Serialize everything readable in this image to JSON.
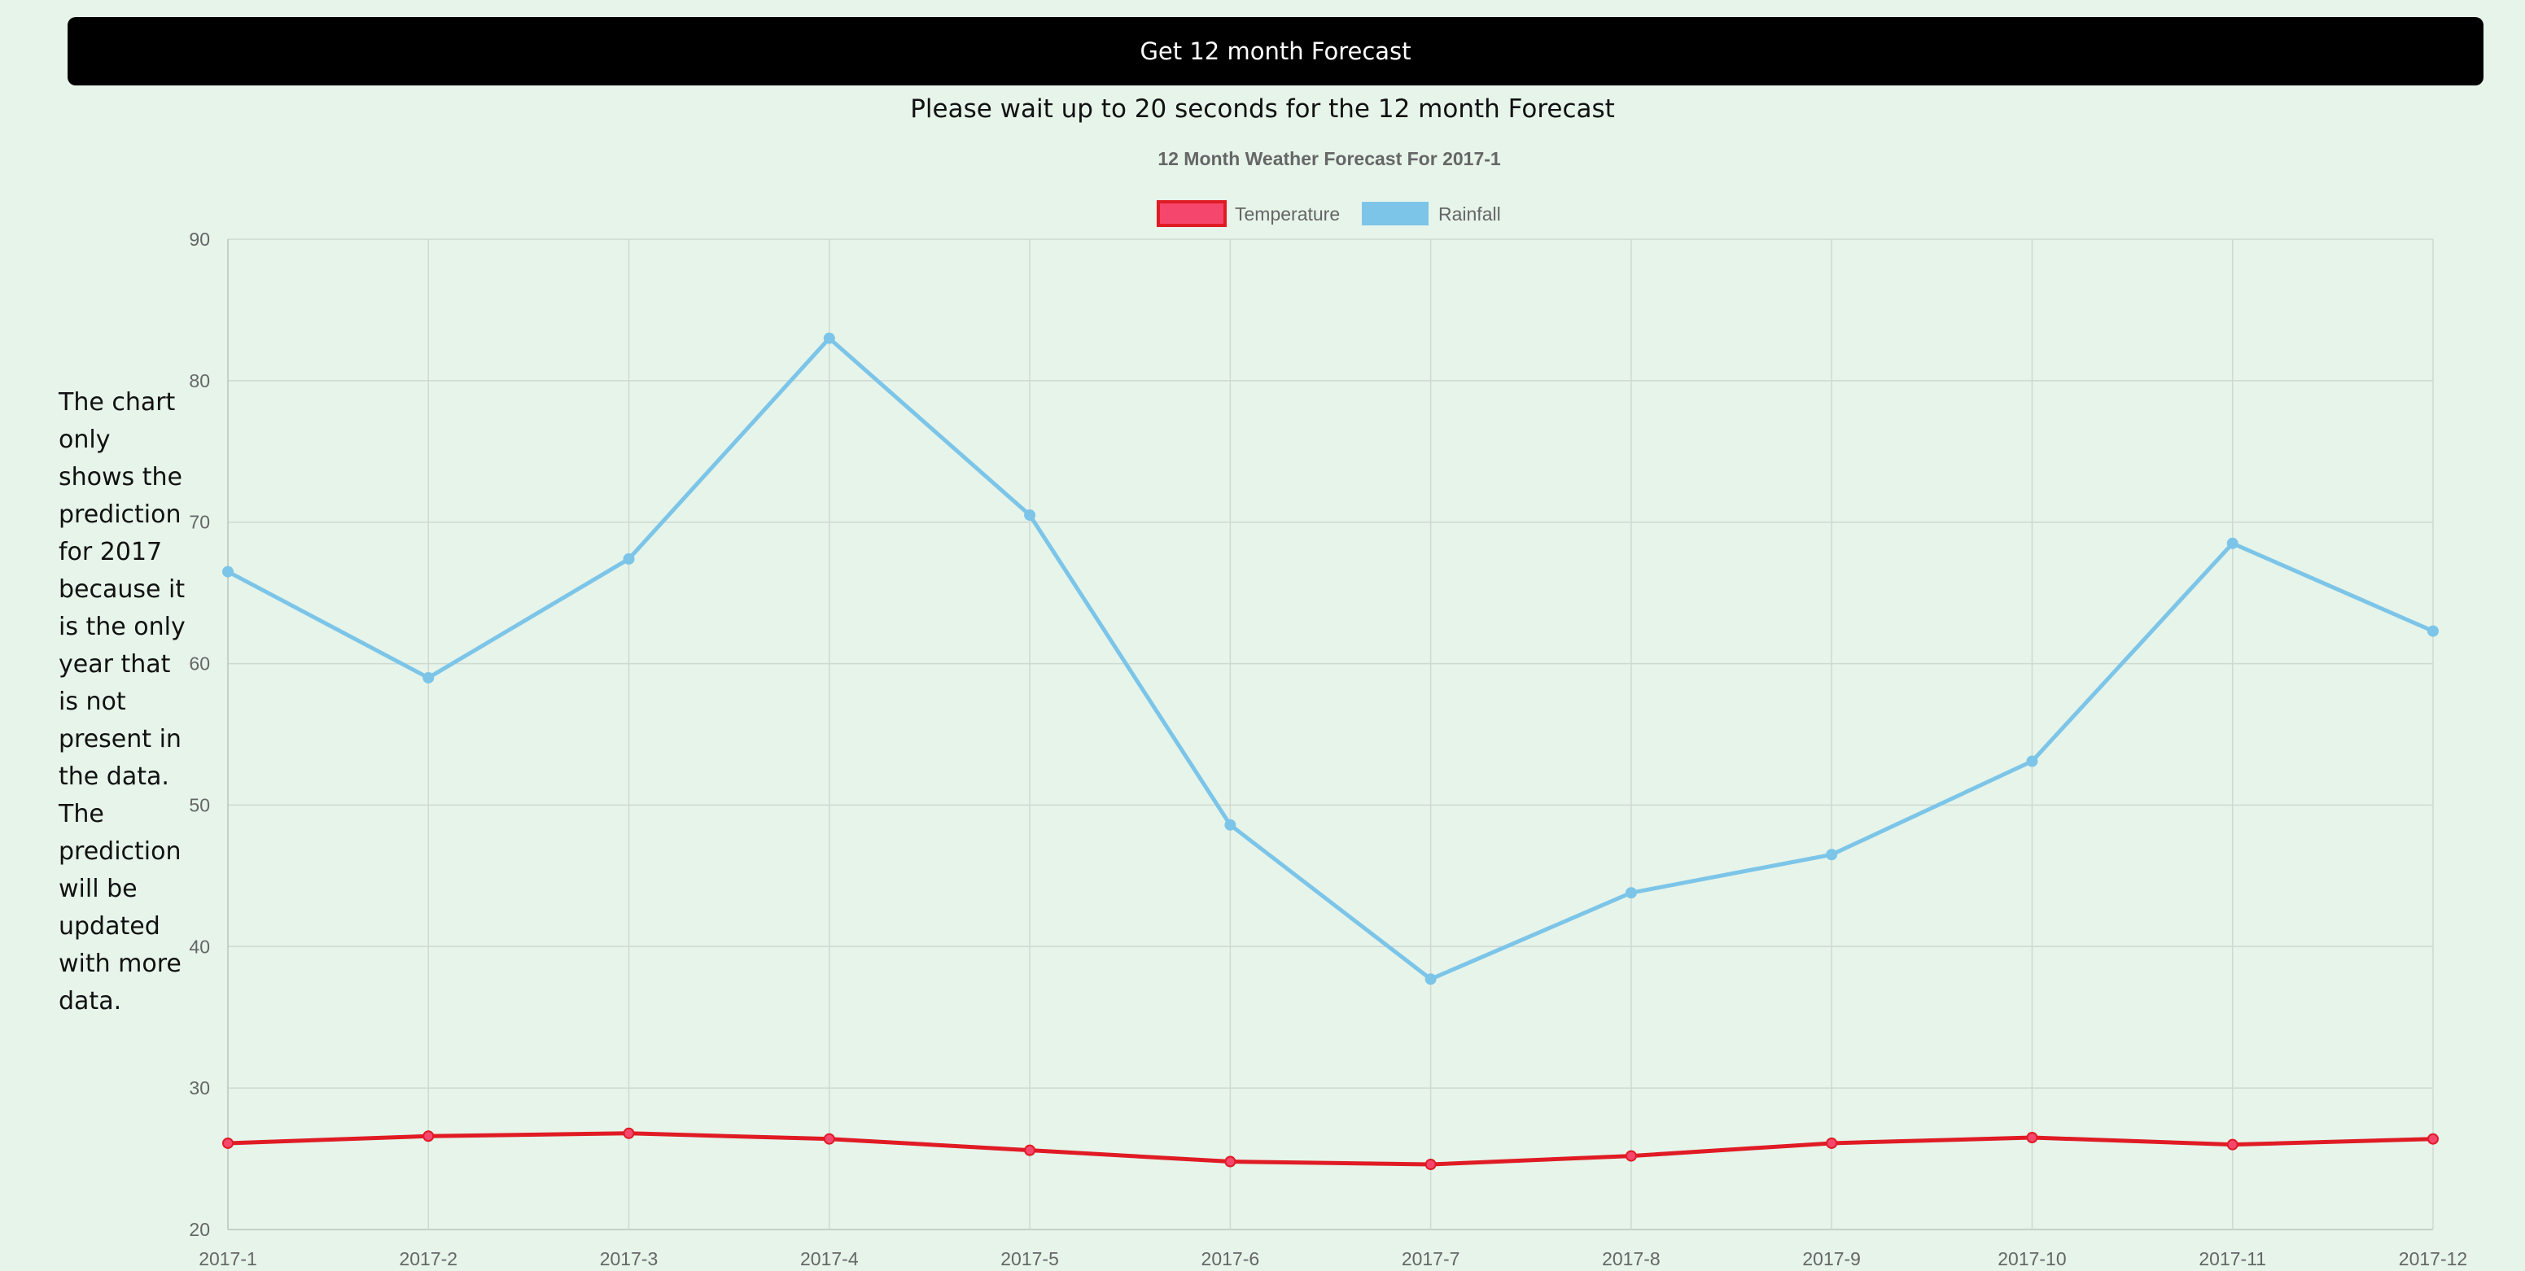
{
  "forecast_button": {
    "label": "Get 12 month Forecast"
  },
  "wait_message": "Please wait up to 20 seconds for the 12 month Forecast",
  "side_note": "The chart only shows the prediction for 2017 because it is the only year that is not present in the data. The prediction will be updated with more data.",
  "colors": {
    "background": "#e6f4ea",
    "temperature_line": "#e01b24",
    "temperature_fill": "#f5476e",
    "rainfall_line": "#7cc5e8"
  },
  "chart_data": {
    "type": "line",
    "title": "12 Month Weather Forecast For 2017-1",
    "categories": [
      "2017-1",
      "2017-2",
      "2017-3",
      "2017-4",
      "2017-5",
      "2017-6",
      "2017-7",
      "2017-8",
      "2017-9",
      "2017-10",
      "2017-11",
      "2017-12"
    ],
    "series": [
      {
        "name": "Temperature",
        "values": [
          26.1,
          26.6,
          26.8,
          26.4,
          25.6,
          24.8,
          24.6,
          25.2,
          26.1,
          26.5,
          26.0,
          26.4
        ]
      },
      {
        "name": "Rainfall",
        "values": [
          66.5,
          59.0,
          67.4,
          83.0,
          70.5,
          48.6,
          37.7,
          43.8,
          46.5,
          53.1,
          68.5,
          62.3
        ]
      }
    ],
    "ylim": [
      20,
      90
    ],
    "yticks": [
      20,
      30,
      40,
      50,
      60,
      70,
      80,
      90
    ],
    "legend_position": "top-center",
    "grid": true
  }
}
